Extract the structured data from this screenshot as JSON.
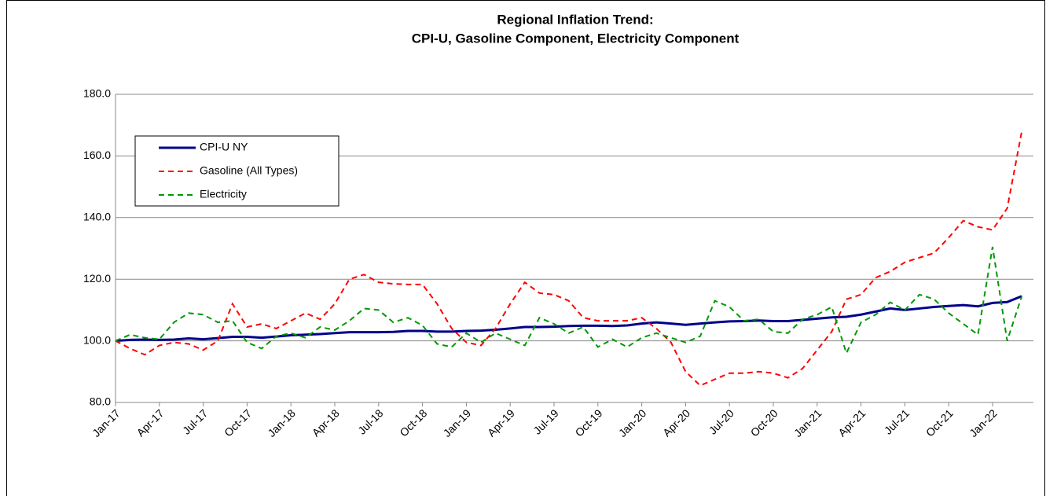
{
  "chart_data": {
    "type": "line",
    "title": "Regional Inflation Trend:",
    "subtitle": "CPI-U, Gasoline Component, Electricity Component",
    "categories": [
      "Jan-17",
      null,
      null,
      "Apr-17",
      null,
      null,
      "Jul-17",
      null,
      null,
      "Oct-17",
      null,
      null,
      "Jan-18",
      null,
      null,
      "Apr-18",
      null,
      null,
      "Jul-18",
      null,
      null,
      "Oct-18",
      null,
      null,
      "Jan-19",
      null,
      null,
      "Apr-19",
      null,
      null,
      "Jul-19",
      null,
      null,
      "Oct-19",
      null,
      null,
      "Jan-20",
      null,
      null,
      "Apr-20",
      null,
      null,
      "Jul-20",
      null,
      null,
      "Oct-20",
      null,
      null,
      "Jan-21",
      null,
      null,
      "Apr-21",
      null,
      null,
      "Jul-21",
      null,
      null,
      "Oct-21",
      null,
      null,
      "Jan-22",
      null,
      null
    ],
    "series": [
      {
        "name": "CPI-U NY",
        "color": "#00008b",
        "style": "solid",
        "values": [
          100,
          100.3,
          100.4,
          100.3,
          100.4,
          100.8,
          100.5,
          100.9,
          101.3,
          101.3,
          101,
          101.4,
          101.8,
          102,
          102.2,
          102.5,
          102.8,
          102.8,
          102.8,
          102.9,
          103.2,
          103.2,
          103,
          103,
          103.2,
          103.3,
          103.6,
          104,
          104.5,
          104.5,
          104.6,
          104.8,
          104.9,
          104.9,
          104.8,
          105,
          105.6,
          106,
          105.6,
          105.2,
          105.6,
          106,
          106.3,
          106.4,
          106.6,
          106.4,
          106.4,
          106.8,
          107.2,
          107.6,
          107.8,
          108.5,
          109.5,
          110.5,
          110,
          110.5,
          111,
          111.3,
          111.6,
          111.2,
          112.3,
          112.6,
          114.5
        ]
      },
      {
        "name": "Gasoline (All Types)",
        "color": "#ff0000",
        "style": "dashed",
        "values": [
          100,
          97.5,
          95.5,
          98.5,
          99.5,
          99,
          97,
          100,
          112,
          104.5,
          105.5,
          104,
          106.5,
          109,
          107,
          112,
          120,
          121.5,
          119,
          118.5,
          118.3,
          118.3,
          112,
          104,
          99.5,
          98.5,
          104,
          112,
          119,
          115.5,
          115,
          113,
          107.5,
          106.5,
          106.5,
          106.5,
          107.5,
          104,
          99.5,
          90,
          85.5,
          87.5,
          89.5,
          89.5,
          90,
          89.5,
          88,
          91,
          97,
          103,
          113.5,
          115,
          120.5,
          122.5,
          125.5,
          127,
          128.5,
          133.5,
          139,
          137,
          136,
          143,
          168
        ]
      },
      {
        "name": "Electricity",
        "color": "#009900",
        "style": "dashed",
        "values": [
          100,
          102,
          101,
          100.5,
          106,
          109,
          108.5,
          106,
          106.5,
          99.5,
          97.5,
          101.5,
          102.5,
          101,
          104.5,
          103.5,
          106.5,
          110.5,
          110,
          106,
          107.5,
          105,
          99,
          98,
          102.5,
          99.5,
          102.5,
          100.5,
          98.5,
          107.5,
          105.5,
          102.5,
          104.5,
          98,
          100.5,
          98,
          101,
          102.5,
          101,
          99.5,
          101.5,
          113,
          111,
          106.5,
          107,
          103,
          102.5,
          107,
          108.5,
          111,
          96,
          106,
          108.5,
          112.5,
          110,
          115,
          113.5,
          109,
          105.5,
          102,
          130.5,
          100,
          114.5
        ]
      }
    ],
    "ylim": [
      80,
      180
    ],
    "yticks": [
      {
        "value": 80,
        "label": "80.0"
      },
      {
        "value": 100,
        "label": "100.0"
      },
      {
        "value": 120,
        "label": "120.0"
      },
      {
        "value": 140,
        "label": "140.0"
      },
      {
        "value": 160,
        "label": "160.0"
      },
      {
        "value": 180,
        "label": "180.0"
      }
    ],
    "grid": true,
    "legend": "upper-left"
  }
}
